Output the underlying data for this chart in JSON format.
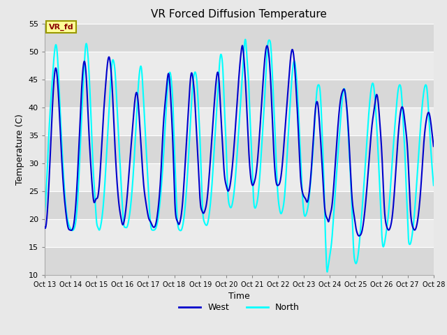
{
  "title": "VR Forced Diffusion Temperature",
  "xlabel": "Time",
  "ylabel": "Temperature (C)",
  "ylim": [
    10,
    55
  ],
  "yticks": [
    10,
    15,
    20,
    25,
    30,
    35,
    40,
    45,
    50,
    55
  ],
  "xlim": [
    0,
    15
  ],
  "xtick_labels": [
    "Oct 13",
    "Oct 14",
    "Oct 15",
    "Oct 16",
    "Oct 17",
    "Oct 18",
    "Oct 19",
    "Oct 20",
    "Oct 21",
    "Oct 22",
    "Oct 23",
    "Oct 24",
    "Oct 25",
    "Oct 26",
    "Oct 27",
    "Oct 28"
  ],
  "xtick_positions": [
    0,
    1,
    2,
    3,
    4,
    5,
    6,
    7,
    8,
    9,
    10,
    11,
    12,
    13,
    14,
    15
  ],
  "label_text": "VR_fd",
  "label_bg": "#FFFF99",
  "label_text_color": "#8B0000",
  "label_edge_color": "#999900",
  "west_color": "#0000CC",
  "north_color": "#00FFFF",
  "legend_west": "West",
  "legend_north": "North",
  "fig_bg": "#E8E8E8",
  "axes_bg": "#E8E8E8",
  "band_dark": "#D8D8D8",
  "band_light": "#EBEBEB",
  "grid_color": "#FFFFFF",
  "west_lw": 1.5,
  "north_lw": 1.5,
  "west_data": [
    [
      0.0,
      18.5
    ],
    [
      0.08,
      20
    ],
    [
      0.2,
      30
    ],
    [
      0.32,
      42
    ],
    [
      0.42,
      47
    ],
    [
      0.52,
      43
    ],
    [
      0.62,
      34
    ],
    [
      0.72,
      26
    ],
    [
      0.82,
      21
    ],
    [
      0.9,
      18.5
    ],
    [
      0.98,
      18
    ],
    [
      1.05,
      18
    ],
    [
      1.12,
      19
    ],
    [
      1.22,
      24
    ],
    [
      1.35,
      36
    ],
    [
      1.48,
      47
    ],
    [
      1.55,
      48
    ],
    [
      1.62,
      44
    ],
    [
      1.7,
      36
    ],
    [
      1.8,
      28
    ],
    [
      1.9,
      23
    ],
    [
      1.97,
      23.5
    ],
    [
      2.05,
      24
    ],
    [
      2.12,
      27
    ],
    [
      2.22,
      35
    ],
    [
      2.35,
      44
    ],
    [
      2.48,
      49
    ],
    [
      2.55,
      47
    ],
    [
      2.62,
      42
    ],
    [
      2.7,
      34
    ],
    [
      2.8,
      26
    ],
    [
      2.88,
      22
    ],
    [
      2.95,
      20
    ],
    [
      3.0,
      19
    ],
    [
      3.08,
      20
    ],
    [
      3.18,
      24
    ],
    [
      3.28,
      30
    ],
    [
      3.4,
      37
    ],
    [
      3.5,
      42
    ],
    [
      3.58,
      42
    ],
    [
      3.65,
      38
    ],
    [
      3.73,
      32
    ],
    [
      3.82,
      26
    ],
    [
      3.9,
      23
    ],
    [
      3.97,
      21
    ],
    [
      4.02,
      20
    ],
    [
      4.08,
      19.5
    ],
    [
      4.13,
      19
    ],
    [
      4.2,
      18.5
    ],
    [
      4.28,
      19
    ],
    [
      4.38,
      22
    ],
    [
      4.48,
      28
    ],
    [
      4.58,
      37
    ],
    [
      4.67,
      42
    ],
    [
      4.73,
      45
    ],
    [
      4.78,
      46
    ],
    [
      4.83,
      44
    ],
    [
      4.9,
      38
    ],
    [
      4.97,
      30
    ],
    [
      5.02,
      23
    ],
    [
      5.08,
      20
    ],
    [
      5.12,
      19.5
    ],
    [
      5.17,
      19
    ],
    [
      5.22,
      19.5
    ],
    [
      5.3,
      22
    ],
    [
      5.42,
      30
    ],
    [
      5.55,
      40
    ],
    [
      5.65,
      46
    ],
    [
      5.72,
      45
    ],
    [
      5.78,
      42
    ],
    [
      5.85,
      36
    ],
    [
      5.92,
      30
    ],
    [
      6.0,
      23
    ],
    [
      6.06,
      21.5
    ],
    [
      6.12,
      21
    ],
    [
      6.18,
      21.5
    ],
    [
      6.25,
      23
    ],
    [
      6.35,
      28
    ],
    [
      6.47,
      36
    ],
    [
      6.58,
      43
    ],
    [
      6.65,
      46
    ],
    [
      6.72,
      45
    ],
    [
      6.78,
      40
    ],
    [
      6.85,
      34
    ],
    [
      6.93,
      28
    ],
    [
      7.0,
      26
    ],
    [
      7.07,
      25
    ],
    [
      7.15,
      26
    ],
    [
      7.25,
      30
    ],
    [
      7.38,
      38
    ],
    [
      7.5,
      46
    ],
    [
      7.58,
      50
    ],
    [
      7.63,
      51
    ],
    [
      7.68,
      49
    ],
    [
      7.75,
      44
    ],
    [
      7.83,
      36
    ],
    [
      7.9,
      30
    ],
    [
      7.96,
      27
    ],
    [
      8.02,
      26
    ],
    [
      8.08,
      26.5
    ],
    [
      8.15,
      28
    ],
    [
      8.27,
      34
    ],
    [
      8.4,
      43
    ],
    [
      8.52,
      50
    ],
    [
      8.58,
      51
    ],
    [
      8.63,
      50
    ],
    [
      8.7,
      46
    ],
    [
      8.78,
      38
    ],
    [
      8.86,
      30
    ],
    [
      8.93,
      26.5
    ],
    [
      9.0,
      26
    ],
    [
      9.07,
      26.5
    ],
    [
      9.15,
      29
    ],
    [
      9.27,
      36
    ],
    [
      9.4,
      44
    ],
    [
      9.52,
      50
    ],
    [
      9.58,
      50
    ],
    [
      9.63,
      48
    ],
    [
      9.7,
      43
    ],
    [
      9.78,
      36
    ],
    [
      9.86,
      28
    ],
    [
      9.93,
      25
    ],
    [
      10.0,
      24
    ],
    [
      10.07,
      23.5
    ],
    [
      10.12,
      23
    ],
    [
      10.18,
      24
    ],
    [
      10.27,
      28
    ],
    [
      10.37,
      35
    ],
    [
      10.45,
      40
    ],
    [
      10.5,
      41
    ],
    [
      10.55,
      40
    ],
    [
      10.6,
      37
    ],
    [
      10.67,
      32
    ],
    [
      10.73,
      27
    ],
    [
      10.8,
      22
    ],
    [
      10.85,
      20.5
    ],
    [
      10.9,
      20
    ],
    [
      10.95,
      19.5
    ],
    [
      11.0,
      20.5
    ],
    [
      11.07,
      22
    ],
    [
      11.15,
      26
    ],
    [
      11.27,
      34
    ],
    [
      11.4,
      41
    ],
    [
      11.5,
      43
    ],
    [
      11.57,
      43
    ],
    [
      11.63,
      41
    ],
    [
      11.7,
      37
    ],
    [
      11.78,
      30
    ],
    [
      11.85,
      24
    ],
    [
      11.92,
      21
    ],
    [
      11.97,
      19.5
    ],
    [
      12.0,
      18.5
    ],
    [
      12.05,
      17.5
    ],
    [
      12.1,
      17
    ],
    [
      12.15,
      17
    ],
    [
      12.22,
      17.5
    ],
    [
      12.3,
      19.5
    ],
    [
      12.4,
      24
    ],
    [
      12.52,
      31
    ],
    [
      12.63,
      37
    ],
    [
      12.72,
      40
    ],
    [
      12.78,
      42
    ],
    [
      12.83,
      42
    ],
    [
      12.88,
      40
    ],
    [
      12.93,
      37
    ],
    [
      13.0,
      32
    ],
    [
      13.05,
      27
    ],
    [
      13.1,
      22
    ],
    [
      13.15,
      19.5
    ],
    [
      13.2,
      18.5
    ],
    [
      13.27,
      18
    ],
    [
      13.33,
      18.5
    ],
    [
      13.42,
      21
    ],
    [
      13.52,
      27
    ],
    [
      13.62,
      34
    ],
    [
      13.72,
      39
    ],
    [
      13.8,
      40
    ],
    [
      13.85,
      39
    ],
    [
      13.9,
      37
    ],
    [
      14.0,
      32
    ],
    [
      14.05,
      27
    ],
    [
      14.1,
      22
    ],
    [
      14.15,
      19.5
    ],
    [
      14.2,
      18.5
    ],
    [
      14.27,
      18
    ],
    [
      14.33,
      18.5
    ],
    [
      14.42,
      21
    ],
    [
      14.53,
      27
    ],
    [
      14.63,
      34
    ],
    [
      14.73,
      38
    ],
    [
      14.82,
      39
    ],
    [
      14.9,
      37
    ],
    [
      15.0,
      33
    ]
  ],
  "north_data": [
    [
      0.0,
      21
    ],
    [
      0.07,
      26
    ],
    [
      0.17,
      36
    ],
    [
      0.28,
      44
    ],
    [
      0.38,
      50
    ],
    [
      0.45,
      51
    ],
    [
      0.52,
      47
    ],
    [
      0.6,
      39
    ],
    [
      0.7,
      30
    ],
    [
      0.8,
      23
    ],
    [
      0.9,
      19.5
    ],
    [
      0.97,
      18.5
    ],
    [
      1.03,
      18
    ],
    [
      1.1,
      18
    ],
    [
      1.18,
      19
    ],
    [
      1.28,
      24
    ],
    [
      1.4,
      36
    ],
    [
      1.52,
      47
    ],
    [
      1.58,
      51
    ],
    [
      1.63,
      51
    ],
    [
      1.7,
      47
    ],
    [
      1.78,
      39
    ],
    [
      1.87,
      29
    ],
    [
      1.95,
      23
    ],
    [
      2.0,
      19.5
    ],
    [
      2.05,
      18.5
    ],
    [
      2.1,
      18
    ],
    [
      2.17,
      19
    ],
    [
      2.27,
      23
    ],
    [
      2.38,
      31
    ],
    [
      2.5,
      41
    ],
    [
      2.6,
      48
    ],
    [
      2.67,
      48
    ],
    [
      2.72,
      46
    ],
    [
      2.78,
      41
    ],
    [
      2.87,
      33
    ],
    [
      2.95,
      26
    ],
    [
      3.0,
      22
    ],
    [
      3.05,
      19
    ],
    [
      3.1,
      18.5
    ],
    [
      3.17,
      18.5
    ],
    [
      3.25,
      20
    ],
    [
      3.35,
      24
    ],
    [
      3.48,
      33
    ],
    [
      3.6,
      43
    ],
    [
      3.68,
      47
    ],
    [
      3.73,
      47
    ],
    [
      3.78,
      44
    ],
    [
      3.85,
      38
    ],
    [
      3.93,
      31
    ],
    [
      4.0,
      25
    ],
    [
      4.05,
      21
    ],
    [
      4.1,
      18.5
    ],
    [
      4.15,
      18
    ],
    [
      4.22,
      18
    ],
    [
      4.3,
      18.5
    ],
    [
      4.4,
      21
    ],
    [
      4.52,
      27
    ],
    [
      4.63,
      35
    ],
    [
      4.73,
      43
    ],
    [
      4.8,
      46
    ],
    [
      4.85,
      46
    ],
    [
      4.9,
      44
    ],
    [
      4.95,
      40
    ],
    [
      5.0,
      33
    ],
    [
      5.05,
      27
    ],
    [
      5.1,
      21
    ],
    [
      5.15,
      18.5
    ],
    [
      5.2,
      18
    ],
    [
      5.27,
      18
    ],
    [
      5.35,
      19.5
    ],
    [
      5.45,
      24
    ],
    [
      5.57,
      33
    ],
    [
      5.68,
      42
    ],
    [
      5.77,
      46
    ],
    [
      5.83,
      46
    ],
    [
      5.88,
      44
    ],
    [
      5.93,
      40
    ],
    [
      6.0,
      33
    ],
    [
      6.05,
      26
    ],
    [
      6.1,
      21
    ],
    [
      6.15,
      19.5
    ],
    [
      6.2,
      19
    ],
    [
      6.27,
      19
    ],
    [
      6.35,
      21
    ],
    [
      6.45,
      26
    ],
    [
      6.57,
      35
    ],
    [
      6.68,
      43
    ],
    [
      6.77,
      49
    ],
    [
      6.83,
      49
    ],
    [
      6.88,
      46
    ],
    [
      6.93,
      40
    ],
    [
      7.0,
      33
    ],
    [
      7.05,
      26
    ],
    [
      7.12,
      22.5
    ],
    [
      7.18,
      22
    ],
    [
      7.25,
      23
    ],
    [
      7.35,
      27
    ],
    [
      7.47,
      35
    ],
    [
      7.6,
      44
    ],
    [
      7.7,
      51
    ],
    [
      7.75,
      52
    ],
    [
      7.8,
      49
    ],
    [
      7.87,
      44
    ],
    [
      7.93,
      37
    ],
    [
      8.0,
      30
    ],
    [
      8.05,
      24
    ],
    [
      8.1,
      22
    ],
    [
      8.17,
      22.5
    ],
    [
      8.25,
      25
    ],
    [
      8.37,
      33
    ],
    [
      8.5,
      43
    ],
    [
      8.6,
      51
    ],
    [
      8.67,
      52
    ],
    [
      8.72,
      51
    ],
    [
      8.78,
      46
    ],
    [
      8.86,
      38
    ],
    [
      8.93,
      30
    ],
    [
      9.0,
      24
    ],
    [
      9.05,
      22
    ],
    [
      9.1,
      21
    ],
    [
      9.17,
      21.5
    ],
    [
      9.25,
      24
    ],
    [
      9.37,
      33
    ],
    [
      9.5,
      43
    ],
    [
      9.6,
      48
    ],
    [
      9.65,
      48
    ],
    [
      9.7,
      46
    ],
    [
      9.78,
      40
    ],
    [
      9.85,
      33
    ],
    [
      9.92,
      26
    ],
    [
      10.0,
      21
    ],
    [
      10.05,
      20.5
    ],
    [
      10.1,
      21
    ],
    [
      10.18,
      23
    ],
    [
      10.28,
      28
    ],
    [
      10.4,
      36
    ],
    [
      10.5,
      43
    ],
    [
      10.57,
      44
    ],
    [
      10.62,
      43
    ],
    [
      10.68,
      38
    ],
    [
      10.73,
      32
    ],
    [
      10.78,
      25
    ],
    [
      10.82,
      18
    ],
    [
      10.85,
      14
    ],
    [
      10.88,
      11
    ],
    [
      10.9,
      10.5
    ],
    [
      10.92,
      11
    ],
    [
      10.95,
      12
    ],
    [
      11.0,
      13.5
    ],
    [
      11.07,
      16
    ],
    [
      11.15,
      21
    ],
    [
      11.27,
      29
    ],
    [
      11.4,
      37
    ],
    [
      11.52,
      43
    ],
    [
      11.58,
      43
    ],
    [
      11.63,
      41
    ],
    [
      11.7,
      36
    ],
    [
      11.78,
      29
    ],
    [
      11.85,
      22
    ],
    [
      11.9,
      16
    ],
    [
      11.93,
      13.5
    ],
    [
      11.96,
      12.5
    ],
    [
      12.0,
      12
    ],
    [
      12.05,
      12.5
    ],
    [
      12.1,
      14
    ],
    [
      12.17,
      17.5
    ],
    [
      12.28,
      24
    ],
    [
      12.4,
      32
    ],
    [
      12.52,
      40
    ],
    [
      12.62,
      44
    ],
    [
      12.68,
      44
    ],
    [
      12.73,
      42
    ],
    [
      12.8,
      37
    ],
    [
      12.87,
      31
    ],
    [
      12.93,
      25
    ],
    [
      12.97,
      21
    ],
    [
      13.0,
      17.5
    ],
    [
      13.03,
      15.5
    ],
    [
      13.06,
      15
    ],
    [
      13.1,
      15.5
    ],
    [
      13.17,
      17.5
    ],
    [
      13.28,
      22
    ],
    [
      13.4,
      30
    ],
    [
      13.53,
      38
    ],
    [
      13.63,
      43
    ],
    [
      13.7,
      44
    ],
    [
      13.75,
      43
    ],
    [
      13.82,
      38
    ],
    [
      13.9,
      31
    ],
    [
      13.95,
      25
    ],
    [
      14.0,
      20
    ],
    [
      14.03,
      16.5
    ],
    [
      14.06,
      15.5
    ],
    [
      14.1,
      15.5
    ],
    [
      14.17,
      17
    ],
    [
      14.28,
      22
    ],
    [
      14.4,
      30
    ],
    [
      14.52,
      38
    ],
    [
      14.63,
      43
    ],
    [
      14.7,
      44
    ],
    [
      14.75,
      43
    ],
    [
      14.82,
      38
    ],
    [
      14.9,
      32
    ],
    [
      15.0,
      26
    ]
  ]
}
